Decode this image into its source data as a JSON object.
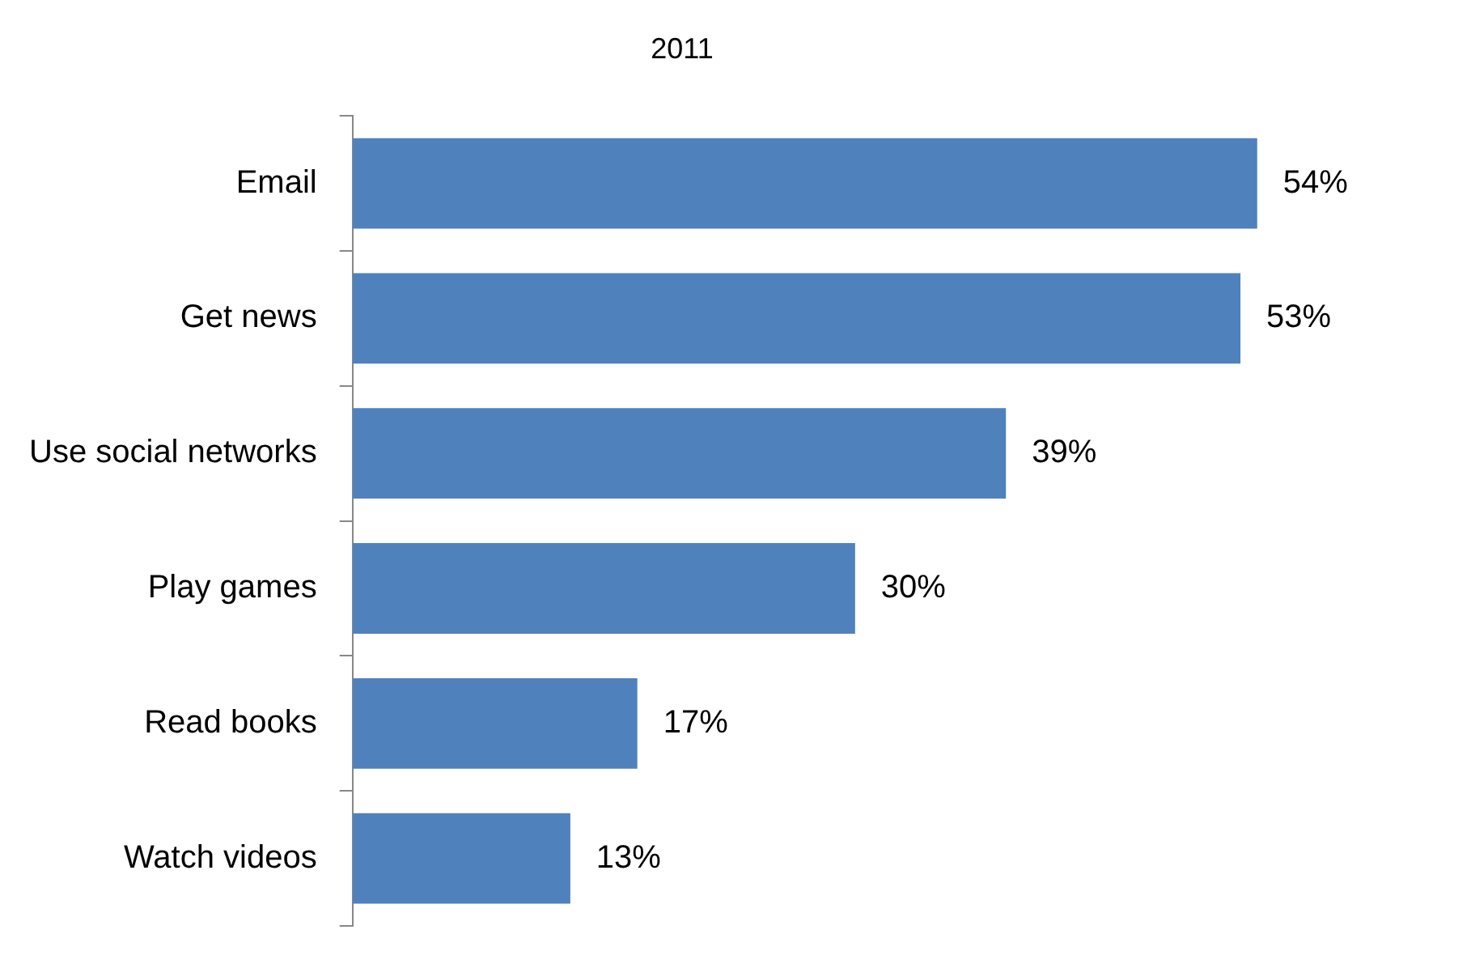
{
  "chart_data": {
    "type": "bar",
    "orientation": "horizontal",
    "title": "2011",
    "categories": [
      "Email",
      "Get news",
      "Use social networks",
      "Play games",
      "Read books",
      "Watch videos"
    ],
    "values": [
      54,
      53,
      39,
      30,
      17,
      13
    ],
    "value_labels": [
      "54%",
      "53%",
      "39%",
      "30%",
      "17%",
      "13%"
    ],
    "color": "#4f81bd",
    "legend": false
  }
}
